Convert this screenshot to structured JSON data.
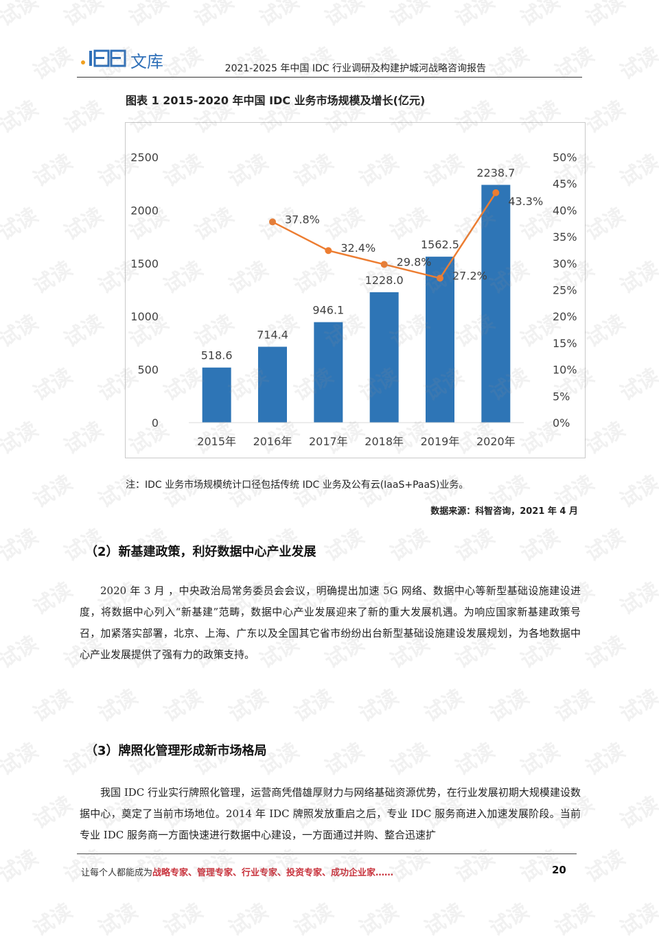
{
  "header": {
    "logo_name": "文库",
    "title": "2021-2025 年中国 IDC 行业调研及构建护城河战略咨询报告"
  },
  "figure": {
    "caption": "图表 1 2015-2020 年中国 IDC 业务市场规模及增长(亿元)",
    "note": "注：IDC 业务市场规模统计口径包括传统 IDC 业务及公有云(IaaS+PaaS)业务。",
    "source": "数据来源：科智咨询，2021 年 4 月"
  },
  "chart_data": {
    "type": "bar",
    "categories": [
      "2015年",
      "2016年",
      "2017年",
      "2018年",
      "2019年",
      "2020年"
    ],
    "series": [
      {
        "values": [
          518.6,
          714.4,
          946.1,
          1228.0,
          1562.5,
          2238.7
        ],
        "value_labels": [
          "518.6",
          "714.4",
          "946.1",
          "1228.0",
          "1562.5",
          "2238.7"
        ],
        "color": "#2e75b6",
        "type": "bar",
        "axis": "left"
      },
      {
        "values": [
          null,
          37.8,
          32.4,
          29.8,
          27.2,
          43.3
        ],
        "value_labels": [
          "",
          "37.8%",
          "32.4%",
          "29.8%",
          "27.2%",
          "43.3%"
        ],
        "color": "#ed7d31",
        "type": "line",
        "axis": "right"
      }
    ],
    "ylim": [
      0,
      2500
    ],
    "y_ticks": [
      "0",
      "500",
      "1000",
      "1500",
      "2000",
      "2500"
    ],
    "y2lim": [
      0,
      50
    ],
    "y2_ticks": [
      "0%",
      "5%",
      "10%",
      "15%",
      "20%",
      "25%",
      "30%",
      "35%",
      "40%",
      "45%",
      "50%"
    ],
    "grid": false,
    "legend": "none"
  },
  "section2": {
    "heading": "（2）新基建政策，利好数据中心产业发展",
    "paragraph": "2020 年 3 月 ，中央政治局常务委员会会议，明确提出加速 5G 网络、数据中心等新型基础设施建设进度，将数据中心列入“新基建”范畴，数据中心产业发展迎来了新的重大发展机遇。为响应国家新基建政策号召，加紧落实部署，北京、上海、广东以及全国其它省市纷纷出台新型基础设施建设发展规划，为各地数据中心产业发展提供了强有力的政策支持。"
  },
  "section3": {
    "heading": "（3）牌照化管理形成新市场格局",
    "paragraph": "我国 IDC 行业实行牌照化管理，运营商凭借雄厚财力与网络基础资源优势，在行业发展初期大规模建设数据中心，奠定了当前市场地位。2014 年 IDC 牌照发放重启之后，专业 IDC 服务商进入加速发展阶段。当前专业 IDC 服务商一方面快速进行数据中心建设，一方面通过并购、整合迅速扩"
  },
  "footer": {
    "prefix": "让每个人都能成为",
    "highlight": "战略专家、管理专家、行业专家、投资专家、成功企业家……",
    "page_number": "20"
  },
  "watermark": {
    "text": "试读",
    "color": "#969696"
  },
  "colors": {
    "bar": "#2e75b6",
    "line": "#ed7d31",
    "logo": "#2e6fb8",
    "footer_highlight": "#c8323c"
  }
}
